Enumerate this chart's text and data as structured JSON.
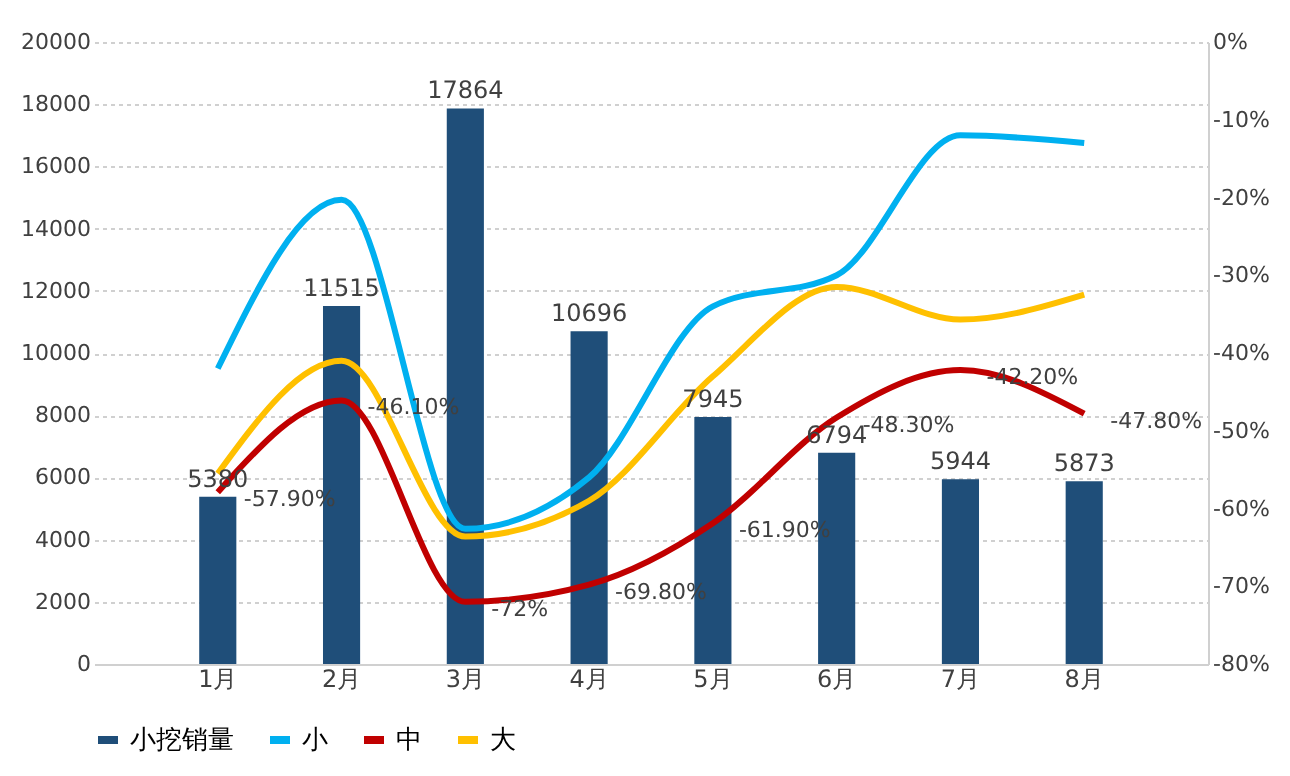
{
  "chart_data": {
    "type": "bar",
    "categories": [
      "1月",
      "2月",
      "3月",
      "4月",
      "5月",
      "6月",
      "7月",
      "8月"
    ],
    "series": [
      {
        "name": "小挖销量",
        "color": "#1f4e79",
        "values": [
          5380,
          11515,
          17864,
          10696,
          7945,
          6794,
          5944,
          5873
        ],
        "value_labels": [
          "5380",
          "11515",
          "17864",
          "10696",
          "7945",
          "6794",
          "5944",
          "5873"
        ]
      },
      {
        "name": "小",
        "type": "line",
        "axis": "y2",
        "color": "#00b0f0",
        "values": [
          -42,
          -20.3,
          -62.6,
          -56,
          -34,
          -30,
          -12,
          -13
        ]
      },
      {
        "name": "中",
        "type": "line",
        "axis": "y2",
        "color": "#c00000",
        "values": [
          -57.9,
          -46.1,
          -72,
          -69.8,
          -61.9,
          -48.3,
          -42.2,
          -47.8
        ],
        "value_labels": [
          "-57.90%",
          "-46.10%",
          "-72%",
          "-69.80%",
          "-61.90%",
          "-48.30%",
          "-42.20%",
          "-47.80%"
        ]
      },
      {
        "name": "大",
        "type": "line",
        "axis": "y2",
        "color": "#ffc000",
        "values": [
          -55.5,
          -41,
          -63.6,
          -59,
          -43,
          -31.5,
          -35.7,
          -32.5
        ]
      }
    ],
    "ylim": [
      0,
      20000
    ],
    "yticks": [
      0,
      2000,
      4000,
      6000,
      8000,
      10000,
      12000,
      14000,
      16000,
      18000,
      20000
    ],
    "y2lim": [
      -80,
      0
    ],
    "y2ticks": [
      {
        "value": 0,
        "label": "0%"
      },
      {
        "value": -10,
        "label": "-10%"
      },
      {
        "value": -20,
        "label": "-20%"
      },
      {
        "value": -30,
        "label": "-30%"
      },
      {
        "value": -40,
        "label": "-40%"
      },
      {
        "value": -50,
        "label": "-50%"
      },
      {
        "value": -60,
        "label": "-60%"
      },
      {
        "value": -70,
        "label": "-70%"
      },
      {
        "value": -80,
        "label": "-80%"
      }
    ],
    "grid": "y",
    "legend": "bottom"
  }
}
